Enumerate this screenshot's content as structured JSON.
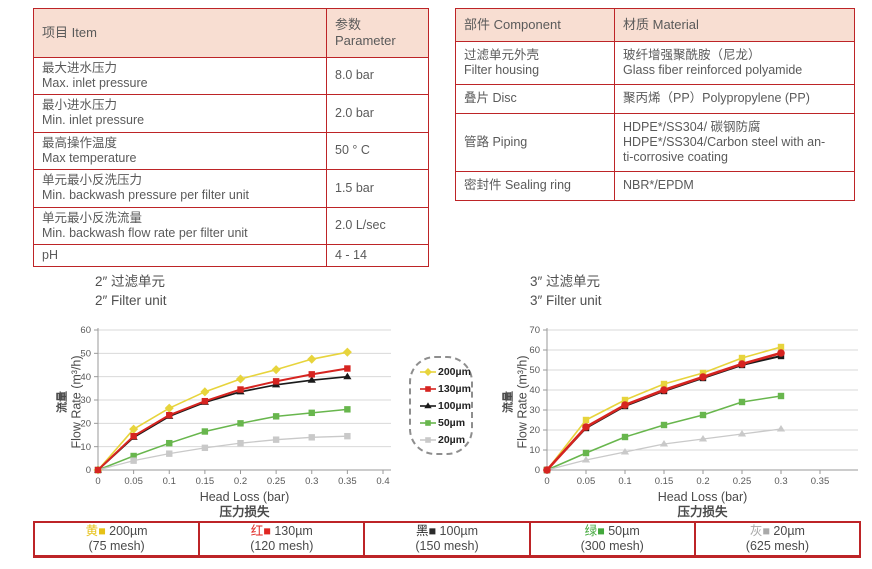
{
  "colors": {
    "table_border": "#bd2427",
    "table_header_bg": "#f8ded2",
    "grid": "#d9d9d9",
    "axis": "#9a9a9a",
    "tick_text": "#595959"
  },
  "spec_table": {
    "col1": "项目 Item",
    "col2": "参数 Parameter",
    "rows": [
      {
        "cn": "最大进水压力",
        "en": "Max. inlet pressure",
        "value": "8.0 bar"
      },
      {
        "cn": "最小进水压力",
        "en": "Min. inlet pressure",
        "value": "2.0 bar"
      },
      {
        "cn": "最高操作温度",
        "en": "Max temperature",
        "value": "50 ° C"
      },
      {
        "cn": "单元最小反洗压力",
        "en": "Min. backwash pressure per filter unit",
        "value": "1.5 bar"
      },
      {
        "cn": "单元最小反洗流量",
        "en": "Min. backwash flow rate per filter unit",
        "value": "2.0 L/sec"
      },
      {
        "cn": "pH",
        "en": "",
        "value": "4 - 14"
      }
    ]
  },
  "material_table": {
    "col1": "部件 Component",
    "col2": "材质 Material",
    "rows": [
      {
        "component": [
          "过滤单元外壳",
          "Filter housing"
        ],
        "material": [
          "玻纤增强聚酰胺（尼龙）",
          "Glass fiber reinforced polyamide"
        ]
      },
      {
        "component": [
          "叠片 Disc"
        ],
        "material": [
          "聚丙烯（PP）Polypropylene (PP)"
        ]
      },
      {
        "component": [
          "管路 Piping"
        ],
        "material": [
          "HDPE*/SS304/ 碳钢防腐",
          "HDPE*/SS304/Carbon steel with an-",
          "ti-corrosive coating"
        ]
      },
      {
        "component": [
          "密封件 Sealing ring"
        ],
        "material": [
          "NBR*/EPDM"
        ]
      }
    ]
  },
  "legend_box": {
    "entries": [
      {
        "label": "200µm",
        "color": "#e7d43c",
        "marker": "diamond"
      },
      {
        "label": "130µm",
        "color": "#d62420",
        "marker": "square"
      },
      {
        "label": "100µm",
        "color": "#1a1a1a",
        "marker": "triangle"
      },
      {
        "label": "50µm",
        "color": "#68b64d",
        "marker": "square"
      },
      {
        "label": "20µm",
        "color": "#c9c9c9",
        "marker": "square"
      }
    ]
  },
  "bottom_legend": {
    "cells": [
      {
        "cn": "黄",
        "swatch": "■",
        "color": "#e6c117",
        "size": "200µm",
        "mesh": "(75 mesh)"
      },
      {
        "cn": "红",
        "swatch": "■",
        "color": "#e02621",
        "size": "130µm",
        "mesh": "(120 mesh)"
      },
      {
        "cn": "黑",
        "swatch": "■",
        "color": "#2b2b2b",
        "size": "100µm",
        "mesh": "(150 mesh)"
      },
      {
        "cn": "绿",
        "swatch": "■",
        "color": "#43a83c",
        "size": "50µm",
        "mesh": "(300 mesh)"
      },
      {
        "cn": "灰",
        "swatch": "■",
        "color": "#a9a9a9",
        "size": "20µm",
        "mesh": "(625 mesh)"
      }
    ]
  },
  "chart_data": [
    {
      "type": "line",
      "title_cn": "2″ 过滤单元",
      "title_en": "2″ Filter unit",
      "xlabel": "Head Loss (bar)",
      "xlabel_cn": "压力损失",
      "ylabel_cn": "流量",
      "ylabel": "Flow Rate (m³/h)",
      "xlim": [
        0,
        0.4
      ],
      "ylim": [
        0,
        60
      ],
      "xticks": [
        "0",
        "0.05",
        "0.1",
        "0.15",
        "0.2",
        "0.25",
        "0.3",
        "0.35",
        "0.4"
      ],
      "yticks": [
        0,
        10,
        20,
        30,
        40,
        50,
        60
      ],
      "grid": true,
      "x": [
        0,
        0.05,
        0.1,
        0.15,
        0.2,
        0.25,
        0.3,
        0.35
      ],
      "series": [
        {
          "name": "200µm",
          "color": "#e7d43c",
          "marker": "diamond",
          "width": 1.6,
          "zorder": 1,
          "values": [
            0,
            17.5,
            26.5,
            33.5,
            39,
            43,
            47.5,
            50.5
          ]
        },
        {
          "name": "130µm",
          "color": "#d62420",
          "marker": "square",
          "width": 2.0,
          "zorder": 10,
          "values": [
            0,
            14.5,
            23.5,
            29.5,
            34.5,
            38,
            41,
            43.5
          ]
        },
        {
          "name": "100µm",
          "color": "#1a1a1a",
          "marker": "triangle",
          "width": 1.7,
          "zorder": 2,
          "values": [
            0,
            14,
            23,
            29,
            33.5,
            36.5,
            38.5,
            40
          ]
        },
        {
          "name": "50µm",
          "color": "#68b64d",
          "marker": "square",
          "width": 1.5,
          "zorder": 3,
          "values": [
            0,
            6,
            11.5,
            16.5,
            20,
            23,
            24.5,
            26
          ]
        },
        {
          "name": "20µm",
          "color": "#c9c9c9",
          "marker": "square",
          "width": 1.3,
          "zorder": 4,
          "values": [
            0,
            4,
            7,
            9.5,
            11.5,
            13,
            14,
            14.5
          ]
        }
      ]
    },
    {
      "type": "line",
      "title_cn": "3″ 过滤单元",
      "title_en": "3″ Filter unit",
      "xlabel": "Head Loss (bar)",
      "xlabel_cn": "压力损失",
      "ylabel_cn": "流量",
      "ylabel": "Flow Rate (m³/h)",
      "xlim": [
        0,
        0.35
      ],
      "ylim": [
        0,
        70
      ],
      "xticks": [
        "0",
        "0.05",
        "0.1",
        "0.15",
        "0.2",
        "0.25",
        "0.3",
        "0.35"
      ],
      "yticks": [
        0,
        10,
        20,
        30,
        40,
        50,
        60,
        70
      ],
      "grid": true,
      "x": [
        0,
        0.05,
        0.1,
        0.15,
        0.2,
        0.25,
        0.3
      ],
      "series": [
        {
          "name": "200µm",
          "color": "#e7d43c",
          "marker": "square",
          "width": 1.6,
          "zorder": 1,
          "values": [
            0,
            25,
            35,
            43,
            48.5,
            56,
            61.5
          ]
        },
        {
          "name": "130µm",
          "color": "#d62420",
          "marker": "circle",
          "width": 2.6,
          "zorder": 10,
          "values": [
            0,
            21.5,
            32.5,
            40,
            46.5,
            53,
            58.5
          ]
        },
        {
          "name": "100µm",
          "color": "#1a1a1a",
          "marker": "square",
          "width": 2.0,
          "zorder": 2,
          "values": [
            0,
            21,
            32,
            39.5,
            46,
            52.5,
            57
          ]
        },
        {
          "name": "50µm",
          "color": "#68b64d",
          "marker": "square",
          "width": 1.5,
          "zorder": 3,
          "values": [
            0,
            8.5,
            16.5,
            22.5,
            27.5,
            34,
            37
          ]
        },
        {
          "name": "20µm",
          "color": "#c9c9c9",
          "marker": "triangle",
          "width": 1.3,
          "zorder": 4,
          "values": [
            0,
            5,
            9,
            13,
            15.5,
            18,
            20.5
          ]
        }
      ]
    }
  ]
}
